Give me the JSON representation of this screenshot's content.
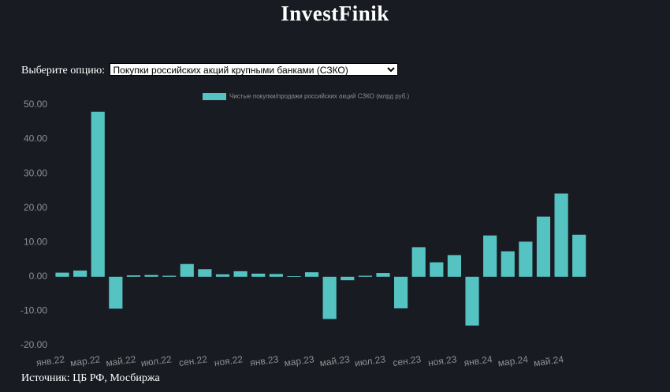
{
  "header": {
    "title": "InvestFinik"
  },
  "selector": {
    "label": "Выберите опцию:",
    "option": "Покупки российских акций крупными банками (СЗКО)"
  },
  "chart_data": {
    "type": "bar",
    "categories": [
      "янв.22",
      null,
      "мар.22",
      null,
      "май.22",
      null,
      "июл.22",
      null,
      "сен.22",
      null,
      "ноя.22",
      null,
      "янв.23",
      null,
      "мар.23",
      null,
      "май.23",
      null,
      "июл.23",
      null,
      "сен.23",
      null,
      "ноя.23",
      null,
      "янв.24",
      null,
      "мар.24",
      null,
      "май.24",
      null
    ],
    "series": [
      {
        "name": "Чистые покупки/продажи российских акций СЗКО (млрд руб.)",
        "color": "#56c3c3",
        "values": [
          1.2,
          1.8,
          48.0,
          -9.3,
          0.4,
          0.5,
          0.3,
          3.7,
          2.2,
          0.7,
          1.6,
          0.9,
          0.8,
          0.2,
          1.3,
          -12.3,
          -1.0,
          0.3,
          1.1,
          -9.2,
          8.6,
          4.2,
          6.3,
          -14.2,
          12.0,
          7.4,
          10.2,
          17.5,
          24.2,
          12.2
        ]
      }
    ],
    "ylim": [
      -20,
      50
    ],
    "yticks": [
      {
        "value": -20,
        "label": "-20.00"
      },
      {
        "value": -10,
        "label": "-10.00"
      },
      {
        "value": 0,
        "label": "0.00"
      },
      {
        "value": 10,
        "label": "10.00"
      },
      {
        "value": 20,
        "label": "20.00"
      },
      {
        "value": 30,
        "label": "30.00"
      },
      {
        "value": 40,
        "label": "40.00"
      },
      {
        "value": 50,
        "label": "50.00"
      }
    ],
    "grid": false
  },
  "footer": {
    "source": "Источник: ЦБ РФ, Мосбиржа"
  }
}
